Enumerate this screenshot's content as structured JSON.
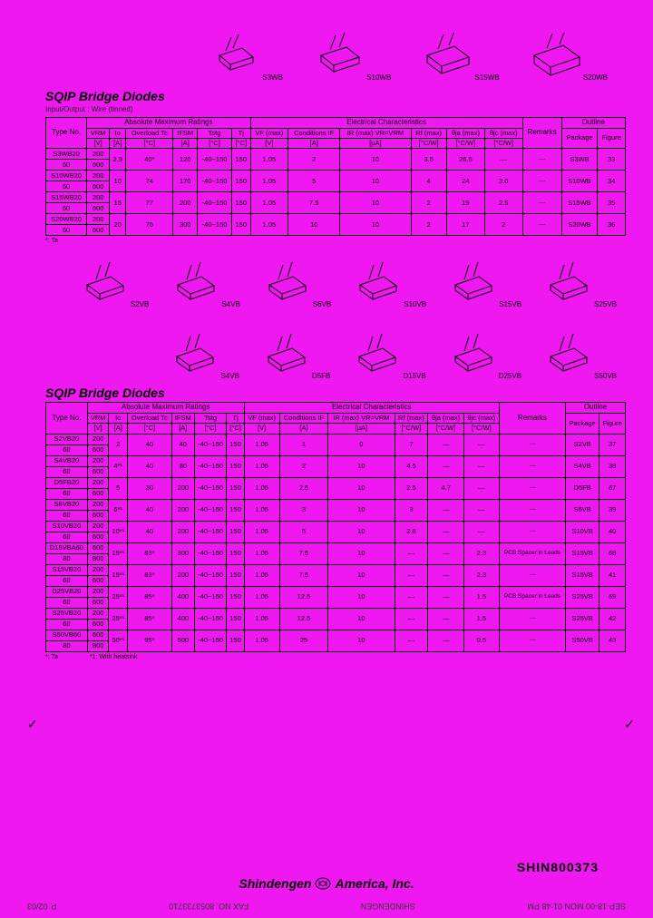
{
  "colors": {
    "bg": "#f018f0",
    "border": "#000000",
    "text": "#000000"
  },
  "section1": {
    "title": "SQIP Bridge Diodes",
    "subtitle": "Input/Output : Wire (tinned)",
    "packages": [
      "S3WB",
      "S10WB",
      "S15WB",
      "S20WB"
    ],
    "header_groups": {
      "abs": "Absolute Maximum Ratings",
      "elec": "Electrical Characteristics",
      "outline": "Outline"
    },
    "cols": [
      "Type No.",
      "VRM",
      "Io",
      "Overload Tc",
      "IFSM",
      "Tstg",
      "Tj",
      "VF (max)",
      "Conditions IF",
      "IR (max) VR=VRM",
      "Rf (max)",
      "θja (max)",
      "θjc (max)",
      "Remarks",
      "Package",
      "Figure"
    ],
    "units": [
      "",
      "[V]",
      "[A]",
      "[°C]",
      "[A]",
      "[°C]",
      "[°C]",
      "[V]",
      "[A]",
      "[µA]",
      "[°C/W]",
      "[°C/W]",
      "[°C/W]",
      "",
      "",
      ""
    ],
    "rows": [
      {
        "type": [
          "S3WB20",
          "60"
        ],
        "vrm": [
          "200",
          "600"
        ],
        "io": "2.9",
        "ol": "40*",
        "ifsm": "120",
        "tstg": "-40~150",
        "tj": "150",
        "vf": "1.05",
        "if": "2",
        "ir": "10",
        "rf": "3.5",
        "oja": "26.5",
        "ojc": "—",
        "rem": "—",
        "pkg": "S3WB",
        "fig": "33"
      },
      {
        "type": [
          "S10WB20",
          "60"
        ],
        "vrm": [
          "200",
          "600"
        ],
        "io": "10",
        "ol": "74",
        "ifsm": "170",
        "tstg": "-40~150",
        "tj": "150",
        "vf": "1.05",
        "if": "5",
        "ir": "10",
        "rf": "4",
        "oja": "24",
        "ojc": "3.0",
        "rem": "—",
        "pkg": "S10WB",
        "fig": "34"
      },
      {
        "type": [
          "S15WB20",
          "60"
        ],
        "vrm": [
          "200",
          "600"
        ],
        "io": "15",
        "ol": "77",
        "ifsm": "200",
        "tstg": "-40~150",
        "tj": "150",
        "vf": "1.05",
        "if": "7.5",
        "ir": "10",
        "rf": "2",
        "oja": "19",
        "ojc": "2.5",
        "rem": "—",
        "pkg": "S15WB",
        "fig": "35"
      },
      {
        "type": [
          "S20WB20",
          "60"
        ],
        "vrm": [
          "200",
          "600"
        ],
        "io": "20",
        "ol": "76",
        "ifsm": "300",
        "tstg": "-40~150",
        "tj": "150",
        "vf": "1.05",
        "if": "10",
        "ir": "10",
        "rf": "2",
        "oja": "17",
        "ojc": "2",
        "rem": "—",
        "pkg": "S20WB",
        "fig": "36"
      }
    ],
    "footnote": "*: Ta"
  },
  "section2": {
    "title": "SQIP Bridge Diodes",
    "packages_top": [
      "S2VB",
      "S4VB",
      "S6VB",
      "S10VB",
      "S15VB",
      "S25VB"
    ],
    "packages_bot": [
      "S4VB",
      "D5FB",
      "D15VB",
      "D25VB",
      "S50VB"
    ],
    "cols": [
      "Type No.",
      "VRM",
      "Io",
      "Overload Tc",
      "IFSM",
      "Tstg",
      "Tj",
      "VF (max)",
      "Conditions IF",
      "IR (max) VR=VRM",
      "Rf (max)",
      "θja (max)",
      "θjc (max)",
      "Remarks",
      "Package",
      "Figure"
    ],
    "units": [
      "",
      "[V]",
      "[A]",
      "[°C]",
      "[A]",
      "[°C]",
      "[°C]",
      "[V]",
      "[A]",
      "[µA]",
      "[°C/W]",
      "[°C/W]",
      "[°C/W]",
      "",
      "",
      ""
    ],
    "rows": [
      {
        "type": [
          "S2VB20",
          "60"
        ],
        "vrm": [
          "200",
          "600"
        ],
        "io": "2",
        "ol": "40",
        "ifsm": "40",
        "tstg": "-40~150",
        "tj": "150",
        "vf": "1.05",
        "if": "1",
        "ir": "0",
        "rf": "7",
        "oja": "—",
        "ojc": "—",
        "rem": "—",
        "pkg": "S2VB",
        "fig": "37"
      },
      {
        "type": [
          "S4VB20",
          "60"
        ],
        "vrm": [
          "200",
          "600"
        ],
        "io": "4*¹",
        "ol": "40",
        "ifsm": "80",
        "tstg": "-40~150",
        "tj": "150",
        "vf": "1.05",
        "if": "2",
        "ir": "10",
        "rf": "4.5",
        "oja": "—",
        "ojc": "—",
        "rem": "—",
        "pkg": "S4VB",
        "fig": "38"
      },
      {
        "type": [
          "D5FB20",
          "60"
        ],
        "vrm": [
          "200",
          "600"
        ],
        "io": "5",
        "ol": "30",
        "ifsm": "200",
        "tstg": "-40~150",
        "tj": "150",
        "vf": "1.05",
        "if": "2.5",
        "ir": "10",
        "rf": "2.5",
        "oja": "4.7",
        "ojc": "—",
        "rem": "—",
        "pkg": "D5FB",
        "fig": "67"
      },
      {
        "type": [
          "S6VB20",
          "60"
        ],
        "vrm": [
          "200",
          "600"
        ],
        "io": "6*¹",
        "ol": "40",
        "ifsm": "200",
        "tstg": "-40~150",
        "tj": "150",
        "vf": "1.05",
        "if": "3",
        "ir": "10",
        "rf": "3",
        "oja": "—",
        "ojc": "—",
        "rem": "—",
        "pkg": "S6VB",
        "fig": "39"
      },
      {
        "type": [
          "S10VB20",
          "60"
        ],
        "vrm": [
          "200",
          "600"
        ],
        "io": "10*¹",
        "ol": "40",
        "ifsm": "200",
        "tstg": "-40~150",
        "tj": "150",
        "vf": "1.05",
        "if": "5",
        "ir": "10",
        "rf": "2.8",
        "oja": "—",
        "ojc": "—",
        "rem": "—",
        "pkg": "S10VB",
        "fig": "40"
      },
      {
        "type": [
          "D15VBA60",
          "80"
        ],
        "vrm": [
          "600",
          "800"
        ],
        "io": "15*¹",
        "ol": "83*",
        "ifsm": "300",
        "tstg": "-40~150",
        "tj": "150",
        "vf": "1.05",
        "if": "7.5",
        "ir": "10",
        "rf": "—",
        "oja": "—",
        "ojc": "2.3",
        "rem": "PCB Spacer in Leads",
        "pkg": "S15VB",
        "fig": "68"
      },
      {
        "type": [
          "S15VB20",
          "60"
        ],
        "vrm": [
          "200",
          "600"
        ],
        "io": "15*¹",
        "ol": "83*",
        "ifsm": "200",
        "tstg": "-40~150",
        "tj": "150",
        "vf": "1.05",
        "if": "7.5",
        "ir": "10",
        "rf": "—",
        "oja": "—",
        "ojc": "2.3",
        "rem": "—",
        "pkg": "S15VB",
        "fig": "41"
      },
      {
        "type": [
          "D25VB20",
          "60"
        ],
        "vrm": [
          "200",
          "600"
        ],
        "io": "25*¹",
        "ol": "85*",
        "ifsm": "400",
        "tstg": "-40~150",
        "tj": "150",
        "vf": "1.05",
        "if": "12.5",
        "ir": "10",
        "rf": "—",
        "oja": "—",
        "ojc": "1.5",
        "rem": "PCB Spacer in Leads",
        "pkg": "S25VB",
        "fig": "69"
      },
      {
        "type": [
          "S25VB20",
          "60"
        ],
        "vrm": [
          "200",
          "600"
        ],
        "io": "25*¹",
        "ol": "85*",
        "ifsm": "400",
        "tstg": "-40~150",
        "tj": "150",
        "vf": "1.05",
        "if": "12.5",
        "ir": "10",
        "rf": "—",
        "oja": "—",
        "ojc": "1.5",
        "rem": "—",
        "pkg": "S25VB",
        "fig": "42"
      },
      {
        "type": [
          "S50VB60",
          "80"
        ],
        "vrm": [
          "600",
          "800"
        ],
        "io": "50*¹",
        "ol": "95*",
        "ifsm": "500",
        "tstg": "-40~150",
        "tj": "150",
        "vf": "1.05",
        "if": "25",
        "ir": "10",
        "rf": "—",
        "oja": "—",
        "ojc": "0.5",
        "rem": "—",
        "pkg": "S50VB",
        "fig": "43"
      }
    ],
    "footnote_left": "*: Ta",
    "footnote_right": "*1: With heatsink"
  },
  "footer": {
    "company": "Shindengen",
    "suffix": "America, Inc.",
    "doc_id": "SHIN800373"
  },
  "fax": {
    "left": "SEP-18-00 MON 01:48 PM",
    "mid": "SHINDENGEN",
    "faxno": "FAX NO. 8053733710",
    "page": "P. 02/03"
  }
}
